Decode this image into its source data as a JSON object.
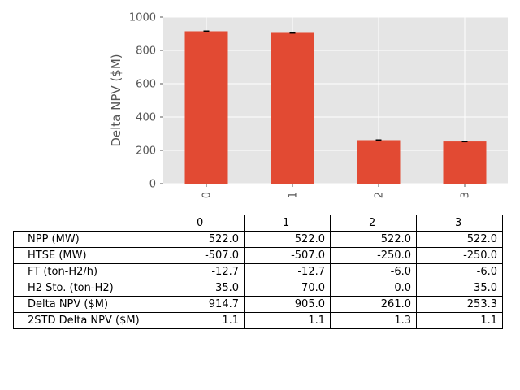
{
  "chart_data": {
    "type": "bar",
    "categories": [
      "0",
      "1",
      "2",
      "3"
    ],
    "values": [
      914.7,
      905.0,
      261.0,
      253.3
    ],
    "error": [
      1.1,
      1.1,
      1.3,
      1.1
    ],
    "xlabel": "",
    "ylabel": "Delta NPV ($M)",
    "ylim": [
      0,
      1000
    ],
    "yticks": [
      "0",
      "200",
      "400",
      "600",
      "800",
      "1000"
    ],
    "grid": true,
    "colors": {
      "bar": "#E24A33",
      "background": "#E5E5E5",
      "grid": "#FFFFFF"
    }
  },
  "table": {
    "columns": [
      "0",
      "1",
      "2",
      "3"
    ],
    "rows": [
      {
        "label": "NPP (MW)",
        "values": [
          "522.0",
          "522.0",
          "522.0",
          "522.0"
        ]
      },
      {
        "label": "HTSE (MW)",
        "values": [
          "-507.0",
          "-507.0",
          "-250.0",
          "-250.0"
        ]
      },
      {
        "label": "FT (ton-H2/h)",
        "values": [
          "-12.7",
          "-12.7",
          "-6.0",
          "-6.0"
        ]
      },
      {
        "label": "H2 Sto. (ton-H2)",
        "values": [
          "35.0",
          "70.0",
          "0.0",
          "35.0"
        ]
      },
      {
        "label": "Delta NPV ($M)",
        "values": [
          "914.7",
          "905.0",
          "261.0",
          "253.3"
        ]
      },
      {
        "label": "2STD Delta NPV ($M)",
        "values": [
          "1.1",
          "1.1",
          "1.3",
          "1.1"
        ]
      }
    ]
  }
}
